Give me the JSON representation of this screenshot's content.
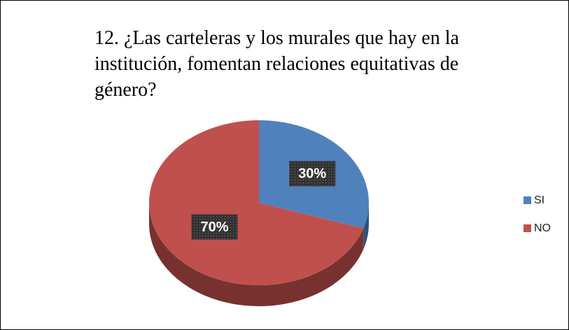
{
  "chart_data": {
    "type": "pie",
    "title": "12. ¿Las carteleras y los murales que hay en la institución, fomentan relaciones equitativas de género?",
    "categories": [
      "SI",
      "NO"
    ],
    "values": [
      30,
      70
    ],
    "value_labels": [
      "30%",
      "70%"
    ],
    "colors": [
      "#4f81bd",
      "#c0504d"
    ],
    "legend": "right"
  }
}
